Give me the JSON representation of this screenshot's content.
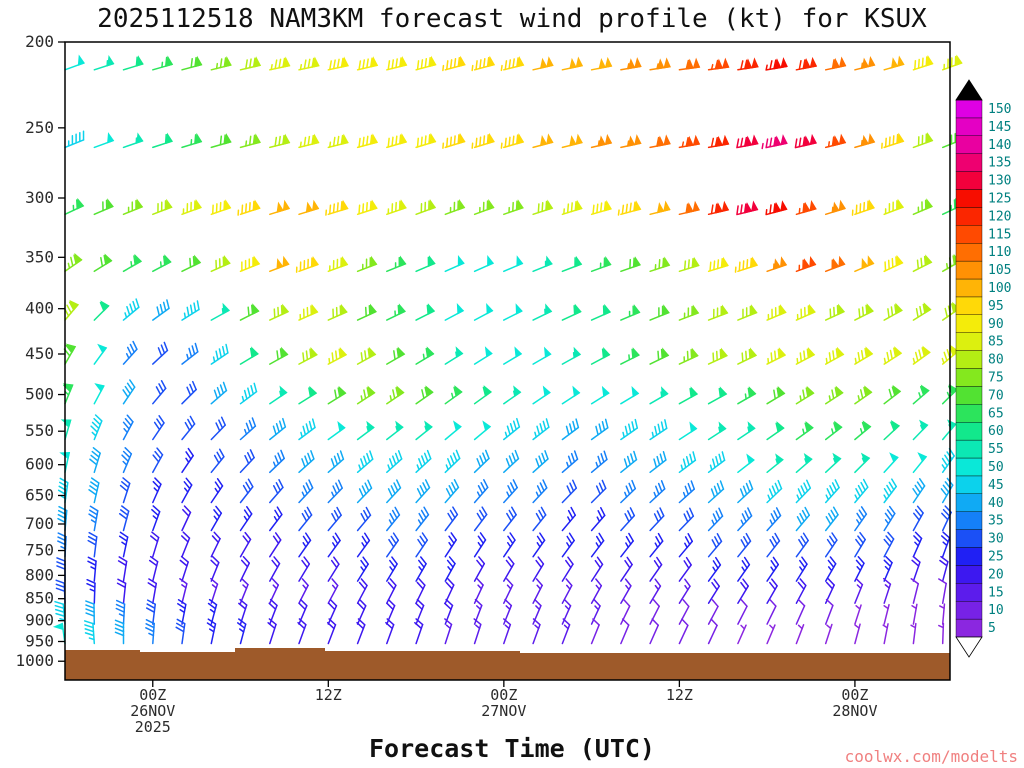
{
  "title": "2025112518 NAM3KM forecast wind profile (kt) for KSUX",
  "xlabel": "Forecast Time (UTC)",
  "watermark": "coolwx.com/modelts",
  "chart_data": {
    "type": "wind-barb-profile",
    "title": "2025112518 NAM3KM forecast wind profile (kt) for KSUX",
    "xlabel": "Forecast Time (UTC)",
    "axes": {
      "tick_color": "#2b2b2b",
      "axis_color": "#000000",
      "y_scale": "log-pressure",
      "y_ticks": [
        200,
        250,
        300,
        350,
        400,
        450,
        500,
        550,
        600,
        650,
        700,
        750,
        800,
        850,
        900,
        950,
        1000
      ],
      "x_ticks": [
        {
          "hour": 6,
          "lines": [
            "00Z",
            "26NOV",
            "2025"
          ]
        },
        {
          "hour": 18,
          "lines": [
            "12Z"
          ]
        },
        {
          "hour": 30,
          "lines": [
            "00Z",
            "27NOV"
          ]
        },
        {
          "hour": 42,
          "lines": [
            "12Z"
          ]
        },
        {
          "hour": 54,
          "lines": [
            "00Z",
            "28NOV"
          ]
        }
      ]
    },
    "colorbar": {
      "units": "kt",
      "levels": [
        5,
        10,
        15,
        20,
        25,
        30,
        35,
        40,
        45,
        50,
        55,
        60,
        65,
        70,
        75,
        80,
        85,
        90,
        95,
        100,
        105,
        110,
        115,
        120,
        125,
        130,
        135,
        140,
        145,
        150
      ],
      "colors": [
        "#8b27e0",
        "#7722e6",
        "#5c1cec",
        "#3d18f0",
        "#2020f4",
        "#1b50f6",
        "#1580f8",
        "#10aaf4",
        "#0cd2ec",
        "#0ae8d8",
        "#0ce8b4",
        "#12e88c",
        "#2ce45c",
        "#52e232",
        "#84e81e",
        "#b4ee14",
        "#dcf00f",
        "#f4ec0a",
        "#ffd908",
        "#ffb406",
        "#ff9104",
        "#ff6e02",
        "#ff4a01",
        "#fb2600",
        "#f70d00",
        "#f2003c",
        "#ee0070",
        "#e900a0",
        "#e400c4",
        "#df00e4"
      ],
      "over_color": "#000000",
      "under_color": "#ffffff",
      "label_color": "#008080"
    },
    "terrain": {
      "color": "#9e5a2a",
      "points": [
        [
          65,
          650
        ],
        [
          140,
          650
        ],
        [
          140,
          652
        ],
        [
          235,
          652
        ],
        [
          235,
          648
        ],
        [
          325,
          648
        ],
        [
          325,
          651
        ],
        [
          520,
          651
        ],
        [
          520,
          653
        ],
        [
          950,
          653
        ],
        [
          950,
          680
        ],
        [
          65,
          680
        ]
      ]
    },
    "time_hours": [
      0,
      2,
      4,
      6,
      8,
      10,
      12,
      14,
      16,
      18,
      20,
      22,
      24,
      26,
      28,
      30,
      32,
      34,
      36,
      38,
      40,
      42,
      44,
      46,
      48,
      50,
      52,
      54,
      56,
      58,
      60
    ],
    "rows": [
      {
        "pressure": 215,
        "speeds": [
          50,
          55,
          60,
          65,
          70,
          75,
          80,
          85,
          85,
          90,
          90,
          90,
          90,
          95,
          95,
          95,
          100,
          100,
          100,
          105,
          105,
          110,
          115,
          120,
          125,
          120,
          110,
          105,
          100,
          90,
          85
        ],
        "dirs": [
          70,
          72,
          73,
          74,
          75,
          76,
          77,
          78,
          78,
          78,
          77,
          76,
          75,
          75,
          75,
          76,
          77,
          78,
          79,
          80,
          81,
          82,
          82,
          81,
          80,
          79,
          78,
          76,
          74,
          72,
          70
        ]
      },
      {
        "pressure": 263,
        "speeds": [
          45,
          50,
          55,
          60,
          65,
          70,
          75,
          80,
          85,
          85,
          90,
          90,
          90,
          95,
          95,
          95,
          100,
          100,
          105,
          105,
          110,
          115,
          120,
          130,
          135,
          130,
          115,
          105,
          95,
          80,
          70
        ],
        "dirs": [
          68,
          70,
          71,
          72,
          73,
          74,
          75,
          76,
          76,
          76,
          75,
          74,
          73,
          73,
          73,
          74,
          75,
          76,
          77,
          78,
          79,
          80,
          80,
          79,
          78,
          77,
          76,
          74,
          72,
          70,
          68
        ]
      },
      {
        "pressure": 313,
        "speeds": [
          65,
          70,
          75,
          80,
          85,
          90,
          95,
          100,
          100,
          95,
          90,
          85,
          80,
          75,
          75,
          75,
          80,
          85,
          90,
          95,
          100,
          110,
          120,
          130,
          125,
          115,
          105,
          95,
          85,
          75,
          65
        ],
        "dirs": [
          65,
          67,
          68,
          69,
          70,
          71,
          72,
          73,
          73,
          73,
          72,
          71,
          70,
          70,
          70,
          71,
          72,
          73,
          74,
          75,
          76,
          77,
          77,
          76,
          75,
          74,
          73,
          71,
          69,
          67,
          65
        ]
      },
      {
        "pressure": 363,
        "speeds": [
          75,
          70,
          65,
          65,
          70,
          80,
          90,
          100,
          95,
          85,
          75,
          65,
          58,
          52,
          50,
          52,
          56,
          60,
          65,
          70,
          75,
          80,
          88,
          95,
          105,
          115,
          110,
          100,
          90,
          82,
          75
        ],
        "dirs": [
          55,
          58,
          60,
          62,
          64,
          66,
          68,
          69,
          70,
          70,
          69,
          68,
          67,
          66,
          66,
          67,
          68,
          69,
          70,
          71,
          72,
          73,
          73,
          72,
          71,
          70,
          69,
          67,
          65,
          63,
          60
        ]
      },
      {
        "pressure": 412,
        "speeds": [
          80,
          60,
          45,
          40,
          45,
          55,
          70,
          80,
          85,
          80,
          72,
          65,
          58,
          52,
          50,
          52,
          55,
          58,
          62,
          66,
          70,
          74,
          78,
          82,
          85,
          85,
          82,
          80,
          80,
          80,
          80
        ],
        "dirs": [
          40,
          45,
          50,
          54,
          58,
          61,
          63,
          65,
          66,
          66,
          65,
          64,
          63,
          62,
          62,
          63,
          64,
          65,
          66,
          67,
          68,
          69,
          69,
          68,
          67,
          66,
          65,
          63,
          61,
          58,
          55
        ]
      },
      {
        "pressure": 462,
        "speeds": [
          70,
          50,
          35,
          30,
          35,
          45,
          60,
          72,
          80,
          85,
          80,
          72,
          64,
          56,
          50,
          50,
          52,
          56,
          60,
          65,
          70,
          74,
          78,
          82,
          85,
          85,
          85,
          85,
          85,
          85,
          85
        ],
        "dirs": [
          30,
          36,
          42,
          47,
          52,
          56,
          59,
          61,
          62,
          62,
          61,
          60,
          59,
          58,
          58,
          59,
          60,
          61,
          62,
          63,
          64,
          65,
          65,
          64,
          63,
          62,
          61,
          59,
          57,
          54,
          50
        ]
      },
      {
        "pressure": 512,
        "speeds": [
          65,
          50,
          38,
          30,
          32,
          38,
          46,
          54,
          62,
          68,
          73,
          75,
          72,
          66,
          60,
          55,
          50,
          48,
          48,
          50,
          54,
          58,
          62,
          66,
          70,
          73,
          75,
          73,
          70,
          67,
          65
        ],
        "dirs": [
          22,
          28,
          34,
          40,
          45,
          49,
          53,
          56,
          58,
          58,
          57,
          56,
          55,
          54,
          54,
          55,
          56,
          57,
          58,
          59,
          60,
          61,
          61,
          60,
          59,
          58,
          57,
          55,
          52,
          49,
          45
        ]
      },
      {
        "pressure": 562,
        "speeds": [
          55,
          45,
          36,
          30,
          28,
          30,
          34,
          39,
          44,
          49,
          53,
          55,
          54,
          51,
          48,
          45,
          43,
          42,
          42,
          44,
          47,
          50,
          54,
          57,
          60,
          63,
          64,
          63,
          60,
          57,
          54
        ],
        "dirs": [
          16,
          22,
          28,
          34,
          39,
          44,
          48,
          51,
          53,
          54,
          53,
          52,
          51,
          50,
          50,
          51,
          52,
          53,
          54,
          55,
          56,
          57,
          57,
          56,
          55,
          54,
          52,
          50,
          47,
          44,
          40
        ]
      },
      {
        "pressure": 612,
        "speeds": [
          50,
          42,
          34,
          29,
          27,
          28,
          31,
          34,
          38,
          41,
          44,
          46,
          46,
          44,
          42,
          40,
          38,
          37,
          37,
          39,
          41,
          44,
          47,
          50,
          53,
          55,
          55,
          54,
          51,
          48,
          45
        ],
        "dirs": [
          12,
          17,
          23,
          29,
          34,
          39,
          43,
          46,
          48,
          49,
          49,
          48,
          47,
          46,
          46,
          47,
          48,
          49,
          50,
          51,
          52,
          53,
          53,
          52,
          51,
          49,
          47,
          45,
          42,
          39,
          35
        ]
      },
      {
        "pressure": 662,
        "speeds": [
          45,
          38,
          31,
          27,
          25,
          26,
          28,
          30,
          33,
          35,
          38,
          39,
          39,
          38,
          36,
          34,
          33,
          32,
          32,
          33,
          35,
          37,
          40,
          42,
          44,
          46,
          46,
          45,
          43,
          40,
          38
        ],
        "dirs": [
          8,
          13,
          18,
          24,
          29,
          34,
          38,
          41,
          43,
          44,
          44,
          43,
          42,
          41,
          41,
          42,
          43,
          44,
          45,
          46,
          47,
          48,
          48,
          47,
          46,
          44,
          42,
          40,
          37,
          34,
          30
        ]
      },
      {
        "pressure": 712,
        "speeds": [
          40,
          34,
          28,
          24,
          22,
          23,
          24,
          26,
          28,
          30,
          32,
          33,
          33,
          32,
          31,
          29,
          28,
          27,
          27,
          28,
          30,
          32,
          34,
          35,
          37,
          38,
          38,
          37,
          35,
          32,
          30
        ],
        "dirs": [
          5,
          10,
          15,
          20,
          25,
          30,
          34,
          37,
          39,
          40,
          40,
          39,
          38,
          37,
          37,
          38,
          39,
          40,
          41,
          42,
          43,
          44,
          44,
          43,
          42,
          40,
          38,
          35,
          32,
          29,
          25
        ]
      },
      {
        "pressure": 762,
        "speeds": [
          35,
          30,
          25,
          22,
          20,
          20,
          21,
          22,
          24,
          26,
          27,
          28,
          28,
          27,
          26,
          25,
          24,
          23,
          23,
          24,
          25,
          27,
          28,
          30,
          31,
          32,
          32,
          31,
          29,
          27,
          25
        ],
        "dirs": [
          3,
          7,
          12,
          17,
          22,
          26,
          30,
          33,
          35,
          36,
          36,
          35,
          34,
          33,
          33,
          34,
          35,
          36,
          37,
          38,
          39,
          40,
          40,
          39,
          38,
          36,
          34,
          31,
          28,
          24,
          20
        ]
      },
      {
        "pressure": 812,
        "speeds": [
          30,
          26,
          22,
          19,
          18,
          18,
          18,
          19,
          20,
          22,
          23,
          24,
          24,
          23,
          22,
          21,
          20,
          20,
          20,
          20,
          21,
          22,
          24,
          25,
          26,
          27,
          26,
          25,
          23,
          21,
          19
        ],
        "dirs": [
          0,
          5,
          9,
          14,
          18,
          22,
          26,
          29,
          31,
          32,
          32,
          31,
          30,
          29,
          29,
          30,
          31,
          32,
          33,
          34,
          35,
          36,
          36,
          35,
          34,
          32,
          30,
          27,
          23,
          19,
          15
        ]
      },
      {
        "pressure": 860,
        "speeds": [
          30,
          26,
          22,
          19,
          17,
          16,
          15,
          15,
          16,
          17,
          18,
          19,
          19,
          18,
          17,
          17,
          16,
          16,
          15,
          15,
          16,
          17,
          18,
          19,
          19,
          19,
          18,
          16,
          14,
          12,
          10
        ],
        "dirs": [
          358,
          2,
          6,
          10,
          14,
          18,
          22,
          25,
          27,
          28,
          28,
          27,
          26,
          25,
          25,
          26,
          27,
          28,
          29,
          30,
          31,
          32,
          32,
          31,
          30,
          28,
          25,
          22,
          18,
          14,
          10
        ]
      },
      {
        "pressure": 908,
        "speeds": [
          45,
          40,
          35,
          30,
          26,
          23,
          21,
          20,
          20,
          20,
          20,
          20,
          19,
          18,
          17,
          16,
          15,
          14,
          13,
          12,
          11,
          10,
          10,
          9,
          9,
          8,
          8,
          7,
          6,
          5,
          5
        ],
        "dirs": [
          355,
          359,
          3,
          7,
          11,
          15,
          18,
          21,
          23,
          24,
          24,
          23,
          22,
          21,
          21,
          22,
          23,
          24,
          25,
          26,
          27,
          28,
          28,
          27,
          26,
          24,
          21,
          18,
          14,
          10,
          5
        ]
      },
      {
        "pressure": 955,
        "speeds": [
          50,
          45,
          40,
          35,
          30,
          27,
          24,
          22,
          21,
          20,
          20,
          19,
          18,
          17,
          16,
          15,
          14,
          13,
          12,
          11,
          10,
          9,
          8,
          7,
          6,
          5,
          5,
          5,
          5,
          5,
          5
        ],
        "dirs": [
          352,
          356,
          0,
          4,
          8,
          12,
          15,
          18,
          20,
          21,
          21,
          20,
          19,
          18,
          18,
          19,
          20,
          21,
          22,
          23,
          24,
          25,
          25,
          24,
          23,
          21,
          18,
          15,
          11,
          7,
          2
        ]
      }
    ]
  }
}
